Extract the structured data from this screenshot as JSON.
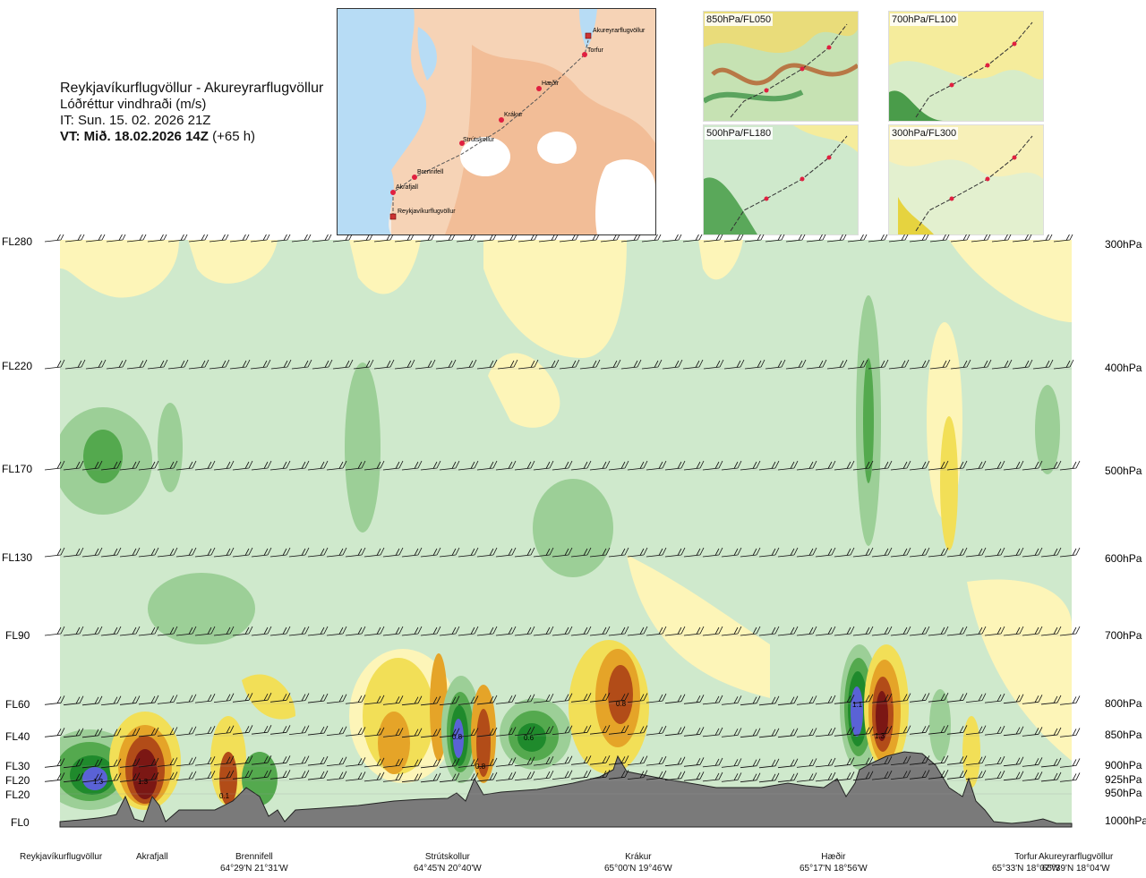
{
  "title": {
    "route": "Reykjavíkurflugvöllur - Akureyrarflugvöllur",
    "parameter": "Lóðréttur vindhraði (m/s)",
    "it": "IT: Sun. 15. 02. 2026 21Z",
    "vt_bold": "VT: Mið. 18.02.2026 14Z",
    "vt_offset": "(+65 h)"
  },
  "map": {
    "points": [
      {
        "name": "Akureyrarflugvöllur"
      },
      {
        "name": "Torfur"
      },
      {
        "name": "Hæðir"
      },
      {
        "name": "Krákur"
      },
      {
        "name": "Strútskollur"
      },
      {
        "name": "Brennifell"
      },
      {
        "name": "Akrafjall"
      },
      {
        "name": "Reykjavíkurflugvöllur"
      }
    ]
  },
  "mini_maps": [
    {
      "label": "850hPa/FL050"
    },
    {
      "label": "700hPa/FL100"
    },
    {
      "label": "500hPa/FL180"
    },
    {
      "label": "300hPa/FL300"
    }
  ],
  "chart_data": {
    "type": "heatmap",
    "variable": "Lóðréttur vindhraði (m/s)",
    "x_locations": [
      {
        "name": "Reykjavíkurflugvöllur",
        "coord": ""
      },
      {
        "name": "Akrafjall",
        "coord": ""
      },
      {
        "name": "Brennifell",
        "coord": "64°29'N 21°31'W"
      },
      {
        "name": "Strútskollur",
        "coord": "64°45'N 20°40'W"
      },
      {
        "name": "Krákur",
        "coord": "65°00'N 19°46'W"
      },
      {
        "name": "Hæðir",
        "coord": "65°17'N 18°56'W"
      },
      {
        "name": "Torfur",
        "coord": "65°33'N 18°07'W"
      },
      {
        "name": "Akureyrarflugvöllur",
        "coord": "65°39'N 18°04'W"
      }
    ],
    "flight_levels": [
      "FL280",
      "FL220",
      "FL170",
      "FL130",
      "FL90",
      "FL60",
      "FL40",
      "FL30",
      "FL20",
      "FL20",
      "FL0"
    ],
    "pressure_levels": [
      "300hPa",
      "400hPa",
      "500hPa",
      "600hPa",
      "700hPa",
      "800hPa",
      "850hPa",
      "900hPa",
      "925hPa",
      "950hPa",
      "1000hPa"
    ],
    "annotations": [
      {
        "text": "1.3",
        "kind": "updraft-max"
      },
      {
        "text": "1.3",
        "kind": "downdraft-max"
      },
      {
        "text": "0.1"
      },
      {
        "text": "0.8"
      },
      {
        "text": "0.8"
      },
      {
        "text": "0.6"
      },
      {
        "text": "0.8"
      },
      {
        "text": "1.1"
      },
      {
        "text": "1.3"
      }
    ],
    "colors": {
      "light_green": "#cfe9cc",
      "mid_green": "#9ccf97",
      "green": "#54a94e",
      "dark_green": "#1f8a2c",
      "blue": "#5a62d6",
      "light_yellow": "#fdf5b8",
      "yellow": "#f2df57",
      "orange": "#e5a428",
      "brown": "#b24c18",
      "dark_red": "#7b1714",
      "terrain": "#7a7a7a"
    }
  }
}
